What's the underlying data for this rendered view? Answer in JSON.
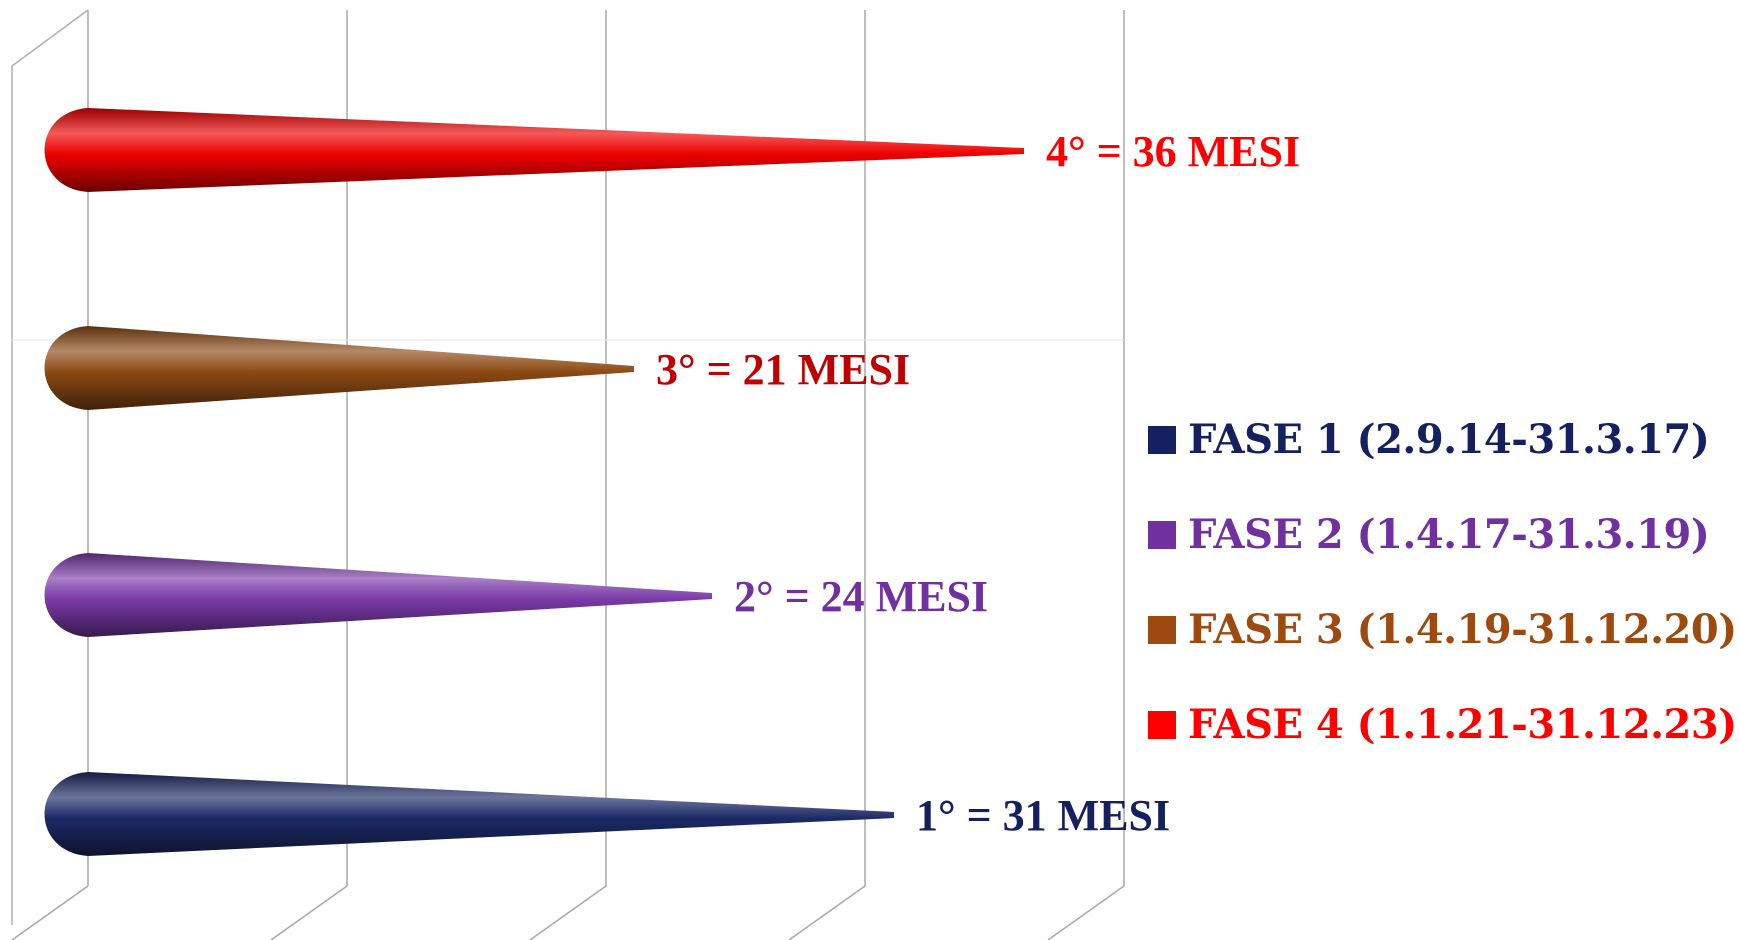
{
  "chart_data": {
    "type": "bar",
    "style": "horizontal 3D cone",
    "grid": true,
    "xlim": [
      0,
      40
    ],
    "categories": [
      "1°",
      "2°",
      "3°",
      "4°"
    ],
    "values": [
      31,
      24,
      21,
      36
    ],
    "data_labels": [
      "1° = 31 MESI",
      "2° = 24 MESI",
      "3° = 21 MESI",
      "4° = 36 MESI"
    ],
    "colors": [
      "#1c2a66",
      "#7a3aa8",
      "#8c4a14",
      "#ee0000"
    ],
    "label_colors": [
      "#142060",
      "#7030a0",
      "#c00000",
      "#ff0000"
    ],
    "legend_position": "right",
    "legend": [
      {
        "label": "FASE 1 (2.9.14-31.3.17)",
        "color": "#142060"
      },
      {
        "label": "FASE 2 (1.4.17-31.3.19)",
        "color": "#7030a0"
      },
      {
        "label": "FASE 3 (1.4.19-31.12.20)",
        "color": "#9c4a10"
      },
      {
        "label": "FASE 4 (1.1.21-31.12.23)",
        "color": "#ff0000"
      }
    ]
  }
}
